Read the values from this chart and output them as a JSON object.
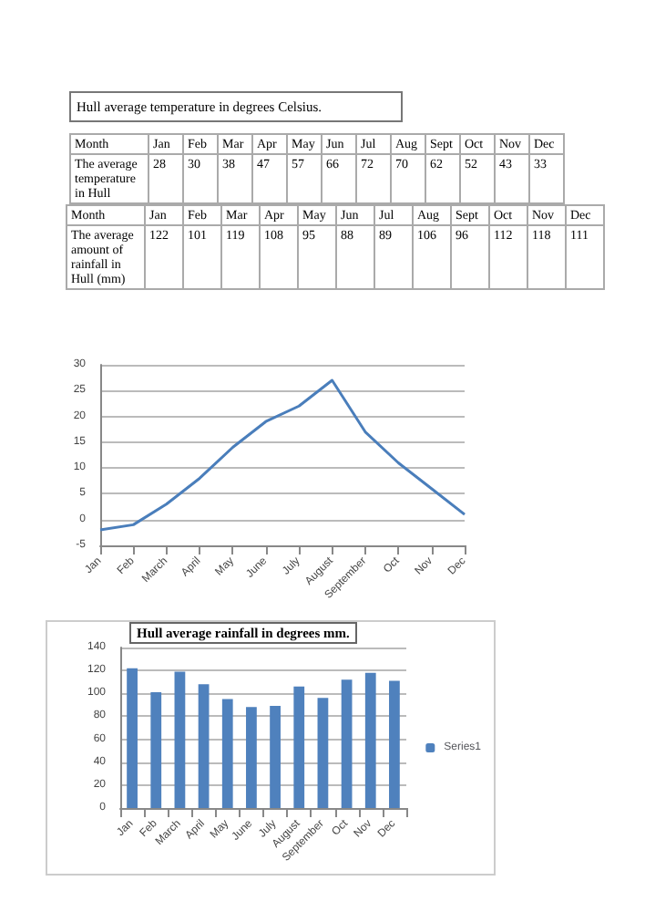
{
  "chart_data": [
    {
      "type": "other",
      "title": "Hull average temperature in degrees Celsius.",
      "xlabel": "Month",
      "categories": [
        "Jan",
        "Feb",
        "Mar",
        "Apr",
        "May",
        "Jun",
        "Jul",
        "Aug",
        "Sept",
        "Oct",
        "Nov",
        "Dec"
      ],
      "series": [
        {
          "name": "The average temperature in Hull",
          "values": [
            28,
            30,
            38,
            47,
            57,
            66,
            72,
            70,
            62,
            52,
            43,
            33
          ]
        }
      ],
      "data_labels": true
    },
    {
      "type": "other",
      "xlabel": "Month",
      "categories": [
        "Jan",
        "Feb",
        "Mar",
        "Apr",
        "May",
        "Jun",
        "Jul",
        "Aug",
        "Sept",
        "Oct",
        "Nov",
        "Dec"
      ],
      "series": [
        {
          "name": "The average amount of rainfall in Hull (mm)",
          "values": [
            122,
            101,
            119,
            108,
            95,
            88,
            89,
            106,
            96,
            112,
            118,
            111
          ]
        }
      ],
      "data_labels": true
    },
    {
      "type": "line",
      "categories": [
        "Jan",
        "Feb",
        "March",
        "April",
        "May",
        "June",
        "July",
        "August",
        "September",
        "Oct",
        "Nov",
        "Dec"
      ],
      "series": [
        {
          "color": "#4a7ebb",
          "values": [
            -2,
            -1,
            3,
            8,
            14,
            19,
            22,
            27,
            17,
            11,
            6,
            1
          ]
        }
      ],
      "ylim": [
        -5,
        30
      ],
      "yticks": [
        -5,
        0,
        5,
        10,
        15,
        20,
        25,
        30
      ],
      "grid": "y",
      "marker": "none",
      "line_style": "solid"
    },
    {
      "type": "bar",
      "title": "Hull average rainfall in degrees mm.",
      "categories": [
        "Jan",
        "Feb",
        "March",
        "April",
        "May",
        "June",
        "July",
        "August",
        "September",
        "Oct",
        "Nov",
        "Dec"
      ],
      "series": [
        {
          "name": "Series1",
          "color": "#4f81bd",
          "values": [
            122,
            101,
            119,
            108,
            95,
            88,
            89,
            106,
            96,
            112,
            118,
            111
          ]
        }
      ],
      "ylim": [
        0,
        140
      ],
      "yticks": [
        0,
        20,
        40,
        60,
        80,
        100,
        120,
        140
      ],
      "grid": "y",
      "legend": "right"
    }
  ]
}
